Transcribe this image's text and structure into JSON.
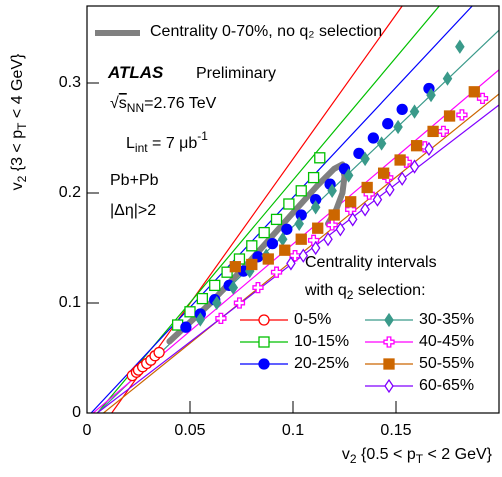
{
  "chart_data": {
    "type": "scatter",
    "xlabel_parts": [
      {
        "text": "v"
      },
      {
        "text": "2",
        "sub": true
      },
      {
        "text": " {0.5 < p"
      },
      {
        "text": "T",
        "sub": true
      },
      {
        "text": " < 2 GeV}"
      }
    ],
    "ylabel_parts": [
      {
        "text": "v"
      },
      {
        "text": "2",
        "sub": true
      },
      {
        "text": " {3 < p"
      },
      {
        "text": "T",
        "sub": true
      },
      {
        "text": " < 4 GeV}"
      }
    ],
    "xlim": [
      0,
      0.2
    ],
    "ylim": [
      0,
      0.37
    ],
    "xticks": [
      0,
      0.05,
      0.1,
      0.15
    ],
    "yticks": [
      0,
      0.1,
      0.2,
      0.3
    ],
    "annotations": [
      {
        "parts": [
          {
            "text": "ATLAS",
            "bold": true
          }
        ]
      },
      {
        "parts": [
          {
            "text": "Preliminary"
          }
        ]
      },
      {
        "parts": [
          {
            "text": "√"
          },
          {
            "text": "s",
            "over": true
          },
          {
            "text": "NN",
            "sub": true
          },
          {
            "text": "=2.76 TeV"
          }
        ]
      },
      {
        "parts": [
          {
            "text": "L"
          },
          {
            "text": "int",
            "sub": true
          },
          {
            "text": " = 7 μb"
          },
          {
            "text": "-1",
            "sup": true
          }
        ]
      },
      {
        "parts": [
          {
            "text": "Pb+Pb"
          }
        ]
      },
      {
        "parts": [
          {
            "text": "|Δη|>2"
          }
        ]
      },
      {
        "parts": [
          {
            "text": "Centrality intervals"
          }
        ]
      },
      {
        "parts": [
          {
            "text": "with q"
          },
          {
            "text": "2",
            "sub": true
          },
          {
            "text": " selection:"
          }
        ]
      }
    ],
    "reference": {
      "name": "Centrality 0-70%, no q₂ selection",
      "color": "#808080",
      "x": [
        0.04,
        0.06,
        0.08,
        0.1,
        0.112,
        0.12,
        0.124,
        0.125,
        0.124,
        0.121,
        0.117
      ],
      "y": [
        0.065,
        0.1,
        0.14,
        0.182,
        0.207,
        0.222,
        0.226,
        0.215,
        0.2,
        0.185,
        0.172
      ]
    },
    "series": [
      {
        "name": "0-5%",
        "color": "#ff0000",
        "marker": "circle-open",
        "x": [
          0.022,
          0.024,
          0.025,
          0.027,
          0.029,
          0.031,
          0.033,
          0.035
        ],
        "values": [
          0.034,
          0.037,
          0.039,
          0.042,
          0.045,
          0.048,
          0.052,
          0.055
        ],
        "fit_x": [
          0.012,
          0.153
        ],
        "fit_y": [
          0,
          0.37
        ]
      },
      {
        "name": "10-15%",
        "color": "#00c000",
        "marker": "square-open",
        "x": [
          0.044,
          0.05,
          0.056,
          0.062,
          0.068,
          0.074,
          0.08,
          0.086,
          0.092,
          0.098,
          0.104,
          0.11,
          0.113
        ],
        "values": [
          0.08,
          0.092,
          0.104,
          0.116,
          0.128,
          0.14,
          0.152,
          0.164,
          0.176,
          0.19,
          0.202,
          0.214,
          0.232
        ],
        "fit_x": [
          0.005,
          0.171
        ],
        "fit_y": [
          0,
          0.37
        ]
      },
      {
        "name": "20-25%",
        "color": "#0000ff",
        "marker": "circle",
        "x": [
          0.048,
          0.055,
          0.062,
          0.069,
          0.076,
          0.083,
          0.09,
          0.097,
          0.104,
          0.111,
          0.118,
          0.125,
          0.132,
          0.139,
          0.146,
          0.153,
          0.166
        ],
        "values": [
          0.078,
          0.09,
          0.103,
          0.116,
          0.129,
          0.142,
          0.154,
          0.167,
          0.18,
          0.194,
          0.208,
          0.222,
          0.236,
          0.25,
          0.263,
          0.276,
          0.295
        ],
        "fit_x": [
          0.002,
          0.187
        ],
        "fit_y": [
          0,
          0.37
        ]
      },
      {
        "name": "30-35%",
        "color": "#3a9a8a",
        "marker": "diamond",
        "x": [
          0.055,
          0.063,
          0.071,
          0.079,
          0.087,
          0.095,
          0.103,
          0.111,
          0.119,
          0.127,
          0.135,
          0.143,
          0.151,
          0.159,
          0.167,
          0.175,
          0.181
        ],
        "values": [
          0.085,
          0.1,
          0.114,
          0.129,
          0.143,
          0.158,
          0.172,
          0.187,
          0.202,
          0.216,
          0.231,
          0.245,
          0.26,
          0.274,
          0.289,
          0.304,
          0.333
        ],
        "fit_x": [
          0.005,
          0.2
        ],
        "fit_y": [
          0,
          0.348
        ]
      },
      {
        "name": "40-45%",
        "color": "#ff00ff",
        "marker": "cross-open",
        "x": [
          0.065,
          0.074,
          0.083,
          0.092,
          0.101,
          0.11,
          0.119,
          0.128,
          0.137,
          0.146,
          0.155,
          0.164,
          0.173,
          0.182,
          0.192
        ],
        "values": [
          0.086,
          0.1,
          0.114,
          0.128,
          0.143,
          0.157,
          0.171,
          0.185,
          0.199,
          0.214,
          0.228,
          0.242,
          0.256,
          0.271,
          0.286
        ],
        "fit_x": [
          0.003,
          0.2
        ],
        "fit_y": [
          0,
          0.312
        ]
      },
      {
        "name": "50-55%",
        "color": "#cc6600",
        "marker": "square",
        "x": [
          0.072,
          0.08,
          0.088,
          0.096,
          0.104,
          0.112,
          0.12,
          0.128,
          0.136,
          0.144,
          0.152,
          0.16,
          0.168,
          0.176,
          0.188
        ],
        "values": [
          0.133,
          0.135,
          0.14,
          0.148,
          0.158,
          0.168,
          0.18,
          0.192,
          0.205,
          0.218,
          0.23,
          0.243,
          0.256,
          0.27,
          0.292
        ],
        "fit_x": [
          0.008,
          0.2
        ],
        "fit_y": [
          0,
          0.29
        ]
      },
      {
        "name": "60-65%",
        "color": "#8000ff",
        "marker": "diamond-open",
        "x": [
          0.099,
          0.105,
          0.111,
          0.117,
          0.123,
          0.129,
          0.135,
          0.141,
          0.147,
          0.153,
          0.159,
          0.166
        ],
        "values": [
          0.136,
          0.143,
          0.15,
          0.158,
          0.167,
          0.176,
          0.185,
          0.194,
          0.203,
          0.213,
          0.224,
          0.24
        ],
        "fit_x": [
          0.005,
          0.2
        ],
        "fit_y": [
          0,
          0.28
        ]
      }
    ]
  }
}
